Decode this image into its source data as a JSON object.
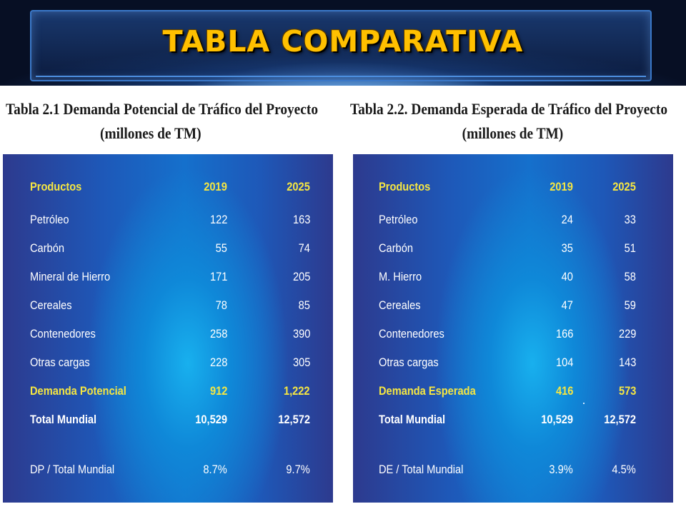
{
  "header": {
    "title": "TABLA COMPARATIVA"
  },
  "tables": [
    {
      "caption_line1": "Tabla 2.1  Demanda Potencial de Tráfico del Proyecto",
      "caption_line2": "(millones de TM)",
      "columns": [
        "Productos",
        "2019",
        "2025"
      ],
      "rows": [
        {
          "label": "Petróleo",
          "v2019": "122",
          "v2025": "163"
        },
        {
          "label": "Carbón",
          "v2019": "55",
          "v2025": "74"
        },
        {
          "label": "Mineral de Hierro",
          "v2019": "171",
          "v2025": "205"
        },
        {
          "label": "Cereales",
          "v2019": "78",
          "v2025": "85"
        },
        {
          "label": "Contenedores",
          "v2019": "258",
          "v2025": "390"
        },
        {
          "label": "Otras cargas",
          "v2019": "228",
          "v2025": "305"
        }
      ],
      "highlight": {
        "label": "Demanda Potencial",
        "v2019": "912",
        "v2025": "1,222"
      },
      "total": {
        "label": "Total Mundial",
        "v2019": "10,529",
        "v2025": "12,572"
      },
      "ratio": {
        "label": "DP / Total Mundial",
        "v2019": "8.7%",
        "v2025": "9.7%"
      }
    },
    {
      "caption_line1": "Tabla 2.2.   Demanda Esperada de Tráfico del Proyecto",
      "caption_line2": "(millones de TM)",
      "columns": [
        "Productos",
        "2019",
        "2025"
      ],
      "rows": [
        {
          "label": "Petróleo",
          "v2019": "24",
          "v2025": "33"
        },
        {
          "label": "Carbón",
          "v2019": "35",
          "v2025": "51"
        },
        {
          "label": "M. Hierro",
          "v2019": "40",
          "v2025": "58"
        },
        {
          "label": "Cereales",
          "v2019": "47",
          "v2025": "59"
        },
        {
          "label": "Contenedores",
          "v2019": "166",
          "v2025": "229"
        },
        {
          "label": "Otras cargas",
          "v2019": "104",
          "v2025": "143"
        }
      ],
      "highlight": {
        "label": "Demanda Esperada",
        "v2019": "416",
        "v2025": "573"
      },
      "total": {
        "label": "Total Mundial",
        "v2019": "10,529",
        "v2025": "12,572"
      },
      "ratio": {
        "label": "DE / Total Mundial",
        "v2019": "3.9%",
        "v2025": "4.5%"
      }
    }
  ],
  "colors": {
    "title": "#ffc000",
    "highlight_text": "#f5e642",
    "panel_edge": "#2d3a8e",
    "panel_center": "#18b0ee"
  }
}
